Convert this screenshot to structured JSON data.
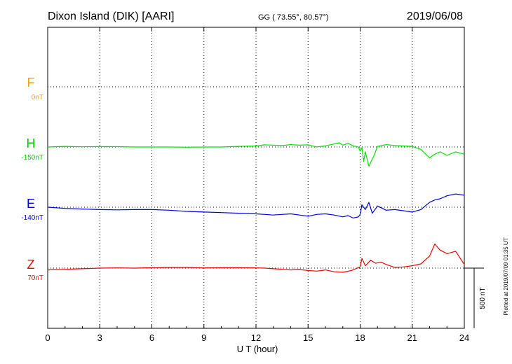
{
  "header": {
    "station": "Dixon Island (DIK)  [AARI]",
    "coords": "GG ( 73.55°,  80.57°)",
    "date": "2019/06/08"
  },
  "colors": {
    "F": "#f0a000",
    "H": "#00e000",
    "E": "#0000dd",
    "Z": "#ee0000"
  },
  "plotted_note": "Plotted at 2019/07/09 01:35 UT",
  "scale_label": "500 nT",
  "chart_data": {
    "type": "line",
    "xlabel": "U T (hour)",
    "xlim": [
      0,
      24
    ],
    "x_ticks": [
      0,
      3,
      6,
      9,
      12,
      15,
      18,
      21,
      24
    ],
    "x_tick_labels": [
      "0",
      "3",
      "6",
      "9",
      "12",
      "15",
      "18",
      "21",
      "24"
    ],
    "grid": true,
    "scale_bar_nT": 500,
    "panel_offsets": [
      {
        "component": "F",
        "label": "F",
        "baseline_label": "0nT"
      },
      {
        "component": "H",
        "label": "H",
        "baseline_label": "-150nT"
      },
      {
        "component": "E",
        "label": "E",
        "baseline_label": "-140nT"
      },
      {
        "component": "Z",
        "label": "Z",
        "baseline_label": "70nT"
      }
    ],
    "series": [
      {
        "component": "H",
        "unit": "nT relative to baseline",
        "x": [
          0,
          1,
          2,
          3,
          4,
          5,
          6,
          7,
          8,
          9,
          10,
          11,
          12,
          12.5,
          13,
          13.5,
          14,
          14.5,
          15,
          15.5,
          16,
          16.5,
          16.8,
          17,
          17.3,
          17.6,
          17.9,
          18.0,
          18.1,
          18.2,
          18.3,
          18.5,
          18.8,
          19,
          19.5,
          20,
          21,
          21.5,
          22,
          22.3,
          22.6,
          23,
          23.5,
          24
        ],
        "y": [
          0,
          5,
          2,
          4,
          3,
          0,
          0,
          0,
          -2,
          0,
          0,
          5,
          8,
          18,
          15,
          12,
          20,
          15,
          18,
          0,
          10,
          25,
          35,
          15,
          30,
          10,
          0,
          -35,
          -5,
          -120,
          -40,
          -160,
          -70,
          5,
          20,
          12,
          5,
          -20,
          -90,
          -60,
          -40,
          -70,
          -40,
          -60
        ]
      },
      {
        "component": "E",
        "unit": "nT relative to baseline",
        "x": [
          0,
          1,
          2,
          3,
          4,
          5,
          6,
          7,
          8,
          9,
          10,
          11,
          12,
          12.5,
          13,
          13.5,
          14,
          14.5,
          15,
          15.5,
          16,
          16.5,
          17,
          17.3,
          17.6,
          17.9,
          18.0,
          18.1,
          18.3,
          18.5,
          18.7,
          19,
          19.5,
          20,
          21,
          21.5,
          22,
          22.3,
          22.6,
          23,
          23.5,
          24
        ],
        "y": [
          0,
          -10,
          -15,
          -20,
          -22,
          -20,
          -20,
          -25,
          -35,
          -40,
          -45,
          -50,
          -55,
          -60,
          -65,
          -60,
          -55,
          -65,
          -75,
          -60,
          -55,
          -65,
          -80,
          -70,
          -90,
          -80,
          -60,
          20,
          -20,
          40,
          -50,
          10,
          -25,
          -20,
          -40,
          -20,
          40,
          60,
          70,
          95,
          110,
          100
        ]
      },
      {
        "component": "Z",
        "unit": "nT relative to baseline",
        "x": [
          0,
          1,
          2,
          3,
          4,
          5,
          6,
          7,
          8,
          9,
          10,
          11,
          12,
          12.5,
          13,
          13.5,
          14,
          14.5,
          15,
          15.5,
          16,
          16.5,
          17,
          17.5,
          18,
          18.1,
          18.3,
          18.6,
          18.9,
          19.2,
          19.5,
          20,
          20.5,
          21,
          21.5,
          22,
          22.3,
          22.6,
          23,
          23.5,
          24
        ],
        "y": [
          -15,
          -10,
          -5,
          0,
          2,
          0,
          3,
          5,
          5,
          2,
          3,
          3,
          2,
          0,
          -5,
          -10,
          -15,
          -12,
          -20,
          -25,
          -15,
          -30,
          -35,
          -20,
          10,
          80,
          20,
          65,
          40,
          50,
          30,
          5,
          10,
          20,
          35,
          100,
          200,
          150,
          120,
          140,
          30
        ]
      }
    ]
  }
}
